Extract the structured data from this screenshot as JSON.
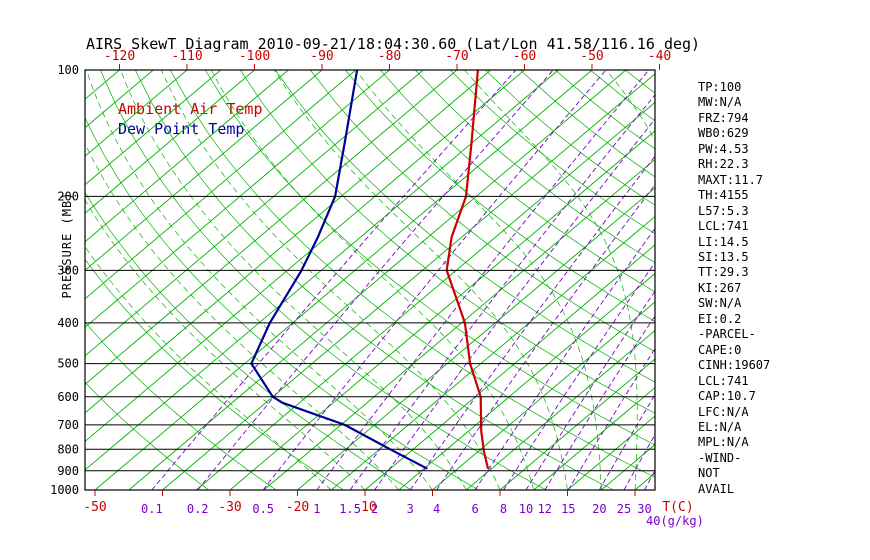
{
  "title": "AIRS SkewT Diagram 2010-09-21/18:04:30.60 (Lat/Lon 41.58/116.16 deg)",
  "legend": {
    "temp_label": "Ambient Air Temp",
    "dewpoint_label": "Dew Point Temp"
  },
  "axes": {
    "y_label": "PRESSURE (MB)",
    "x_unit_label": "T(C)",
    "mixing_unit_label": "40(g/kg)",
    "pressure_ticks": [
      100,
      200,
      300,
      400,
      500,
      600,
      700,
      800,
      900,
      1000
    ],
    "top_temp_labels": [
      -120,
      -110,
      -100,
      -90,
      -80,
      -70,
      -60,
      -50,
      -40
    ],
    "bottom_temp_labels": [
      -50,
      -30,
      -20,
      -10
    ],
    "bottom_tick_temps": [
      -50,
      -40,
      -30,
      -20,
      -10,
      0,
      10,
      20,
      30
    ],
    "mixing_ratio_labels": [
      0.1,
      0.2,
      0.5,
      1,
      1.5,
      2,
      3,
      4,
      6,
      8,
      10,
      12,
      15,
      20,
      25,
      30
    ]
  },
  "colors": {
    "temp_curve": "#cc0000",
    "dewpoint_curve": "#000099",
    "isotherm": "#00b400",
    "mixing": "#7a00cc",
    "axis": "#000000"
  },
  "stats": [
    "TP:100",
    "MW:N/A",
    "FRZ:794",
    "WB0:629",
    "PW:4.53",
    "RH:22.3",
    "MAXT:11.7",
    "TH:4155",
    "L57:5.3",
    "LCL:741",
    "LI:14.5",
    "SI:13.5",
    "TT:29.3",
    "KI:267",
    "SW:N/A",
    "EI:0.2",
    "-PARCEL-",
    "CAPE:0",
    "CINH:19607",
    "LCL:741",
    "CAP:10.7",
    "LFC:N/A",
    "EL:N/A",
    "MPL:N/A",
    "-WIND-",
    "NOT",
    "AVAIL"
  ],
  "chart_data": {
    "type": "line",
    "title": "AIRS SkewT Diagram 2010-09-21/18:04:30.60 (Lat/Lon 41.58/116.16 deg)",
    "xlabel": "Temperature (C)",
    "ylabel": "Pressure (MB)",
    "y_scale": "log",
    "ylim": [
      1000,
      100
    ],
    "x_range_at_1000mb": [
      -50,
      33
    ],
    "series": [
      {
        "name": "Ambient Air Temp",
        "point_format": "[pressure_mb, temp_C]",
        "points": [
          [
            890,
            4.5
          ],
          [
            806,
            0.7
          ],
          [
            722,
            -3.2
          ],
          [
            600,
            -9.2
          ],
          [
            500,
            -16.6
          ],
          [
            400,
            -24.5
          ],
          [
            300,
            -36.4
          ],
          [
            250,
            -41.5
          ],
          [
            200,
            -46.5
          ],
          [
            150,
            -54.9
          ],
          [
            100,
            -66.9
          ]
        ]
      },
      {
        "name": "Dew Point Temp",
        "point_format": "[pressure_mb, temp_C]",
        "points": [
          [
            890,
            -4.5
          ],
          [
            800,
            -13.4
          ],
          [
            700,
            -24.4
          ],
          [
            620,
            -37.5
          ],
          [
            600,
            -40.0
          ],
          [
            500,
            -49.0
          ],
          [
            400,
            -53.4
          ],
          [
            300,
            -57.9
          ],
          [
            250,
            -61.3
          ],
          [
            200,
            -65.9
          ],
          [
            150,
            -73.7
          ],
          [
            100,
            -84.8
          ]
        ]
      }
    ],
    "mixing_ratio_lines_gkg": [
      0.1,
      0.2,
      0.5,
      1,
      1.5,
      2,
      3,
      4,
      6,
      8,
      10,
      12,
      15,
      20,
      25,
      30,
      40
    ],
    "isotherms_C": {
      "from": -130,
      "to": 45,
      "step": 5
    },
    "dry_adiabats_K": {
      "from": 240,
      "to": 450,
      "step": 10
    },
    "moist_adiabats_surface_C": {
      "from": -15,
      "to": 40,
      "step": 5
    }
  }
}
